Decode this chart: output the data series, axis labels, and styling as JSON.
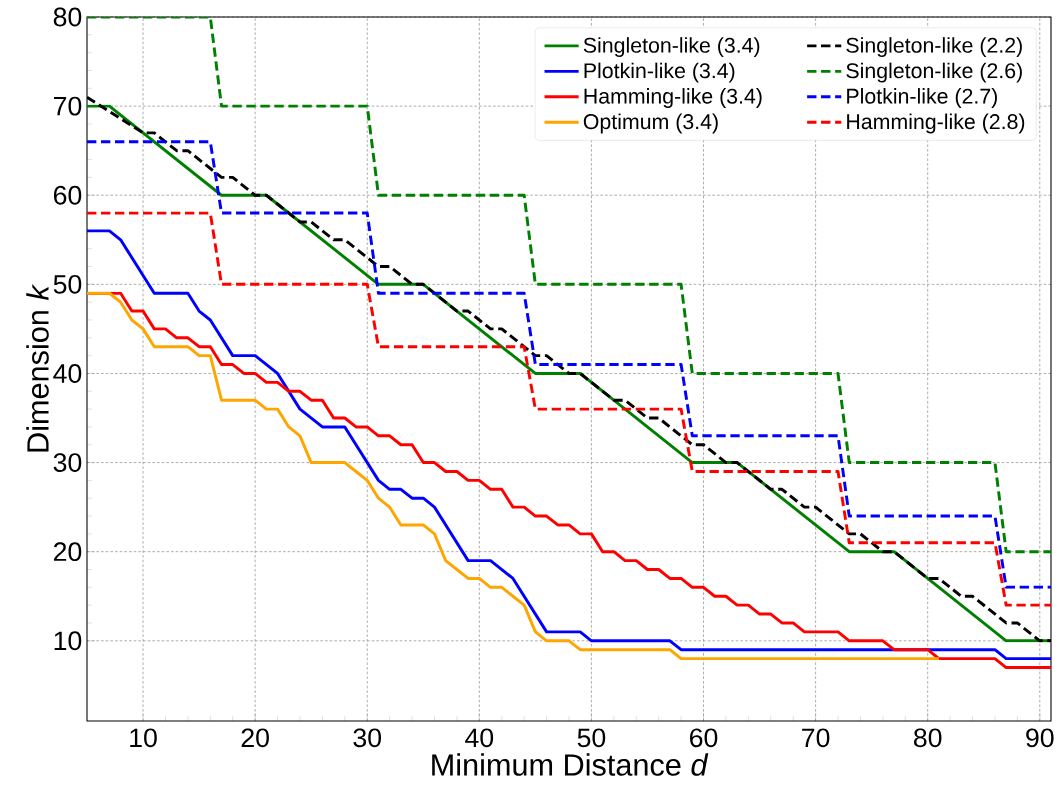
{
  "chart_data": {
    "type": "line",
    "xlabel": "Minimum Distance *d*",
    "ylabel": "Dimension *k*",
    "xlim": [
      5,
      91
    ],
    "ylim": [
      1,
      80
    ],
    "xticks": [
      10,
      20,
      30,
      40,
      50,
      60,
      70,
      80,
      90
    ],
    "yticks": [
      10,
      20,
      30,
      40,
      50,
      60,
      70,
      80
    ],
    "grid": true,
    "legend": "top right",
    "series": [
      {
        "name": "Singleton-like (3.4)",
        "color": "#008000",
        "line_style": "solid",
        "x": [
          5,
          7,
          17,
          21,
          31,
          35,
          45,
          49,
          59,
          63,
          73,
          77,
          87,
          91
        ],
        "values": [
          70,
          70,
          60,
          60,
          50,
          50,
          40,
          40,
          30,
          30,
          20,
          20,
          10,
          10
        ]
      },
      {
        "name": "Plotkin-like (3.4)",
        "color": "#0000ff",
        "line_style": "solid",
        "x": [
          5,
          7,
          8,
          11,
          14,
          15,
          16,
          18,
          20,
          22,
          24,
          26,
          28,
          31,
          32,
          33,
          34,
          35,
          36,
          39,
          41,
          43,
          46,
          49,
          50,
          57,
          58,
          86,
          87,
          91
        ],
        "values": [
          56,
          56,
          55,
          49,
          49,
          47,
          46,
          42,
          42,
          40,
          36,
          34,
          34,
          28,
          27,
          27,
          26,
          26,
          25,
          19,
          19,
          17,
          11,
          11,
          10,
          10,
          9,
          9,
          8,
          8
        ]
      },
      {
        "name": "Hamming-like (3.4)",
        "color": "#ff0000",
        "line_style": "solid",
        "x": [
          5,
          8,
          9,
          10,
          11,
          12,
          13,
          14,
          15,
          16,
          17,
          18,
          19,
          20,
          21,
          22,
          23,
          24,
          25,
          26,
          27,
          28,
          29,
          30,
          31,
          32,
          33,
          34,
          35,
          36,
          37,
          38,
          39,
          40,
          41,
          42,
          43,
          44,
          45,
          46,
          47,
          48,
          49,
          50,
          51,
          52,
          53,
          54,
          55,
          56,
          57,
          58,
          59,
          60,
          61,
          62,
          63,
          64,
          65,
          66,
          67,
          68,
          69,
          72,
          73,
          76,
          77,
          80,
          81,
          86,
          87,
          91
        ],
        "values": [
          49,
          49,
          47,
          47,
          45,
          45,
          44,
          44,
          43,
          43,
          41,
          41,
          40,
          40,
          39,
          39,
          38,
          38,
          37,
          37,
          35,
          35,
          34,
          34,
          33,
          33,
          32,
          32,
          30,
          30,
          29,
          29,
          28,
          28,
          27,
          27,
          25,
          25,
          24,
          24,
          23,
          23,
          22,
          22,
          20,
          20,
          19,
          19,
          18,
          18,
          17,
          17,
          16,
          16,
          15,
          15,
          14,
          14,
          13,
          13,
          12,
          12,
          11,
          11,
          10,
          10,
          9,
          9,
          8,
          8,
          7,
          7
        ]
      },
      {
        "name": "Optimum (3.4)",
        "color": "#ffa500",
        "line_style": "solid",
        "x": [
          5,
          7,
          8,
          9,
          10,
          11,
          14,
          15,
          16,
          17,
          20,
          21,
          22,
          23,
          24,
          25,
          28,
          29,
          30,
          31,
          32,
          33,
          35,
          36,
          37,
          38,
          39,
          40,
          41,
          42,
          43,
          44,
          45,
          46,
          48,
          49,
          57,
          58,
          81
        ],
        "values": [
          49,
          49,
          48,
          46,
          45,
          43,
          43,
          42,
          42,
          37,
          37,
          36,
          36,
          34,
          33,
          30,
          30,
          29,
          28,
          26,
          25,
          23,
          23,
          22,
          19,
          18,
          17,
          17,
          16,
          16,
          15,
          14,
          11,
          10,
          10,
          9,
          9,
          8,
          8
        ]
      },
      {
        "name": "Singleton-like (2.2)",
        "color": "#000000",
        "line_style": "dashed",
        "x": [
          5,
          10,
          11,
          13,
          14,
          17,
          18,
          20,
          21,
          24,
          25,
          27,
          28,
          31,
          32,
          34,
          35,
          38,
          39,
          41,
          42,
          45,
          46,
          48,
          49,
          52,
          53,
          55,
          56,
          59,
          60,
          62,
          63,
          66,
          67,
          69,
          70,
          73,
          74,
          76,
          77,
          80,
          81,
          83,
          84,
          87,
          88,
          90,
          91
        ],
        "values": [
          71,
          67,
          67,
          65,
          65,
          62,
          62,
          60,
          60,
          57,
          57,
          55,
          55,
          52,
          52,
          50,
          50,
          47,
          47,
          45,
          45,
          42,
          42,
          40,
          40,
          37,
          37,
          35,
          35,
          32,
          32,
          30,
          30,
          27,
          27,
          25,
          25,
          22,
          22,
          20,
          20,
          17,
          17,
          15,
          15,
          12,
          12,
          10,
          10
        ]
      },
      {
        "name": "Singleton-like (2.6)",
        "color": "#008000",
        "line_style": "dashed",
        "x": [
          5,
          16,
          17,
          30,
          31,
          44,
          45,
          58,
          59,
          72,
          73,
          86,
          87,
          91
        ],
        "values": [
          80,
          80,
          70,
          70,
          60,
          60,
          50,
          50,
          40,
          40,
          30,
          30,
          20,
          20
        ]
      },
      {
        "name": "Plotkin-like (2.7)",
        "color": "#0000ff",
        "line_style": "dashed",
        "x": [
          5,
          16,
          17,
          30,
          31,
          44,
          45,
          58,
          59,
          72,
          73,
          86,
          87,
          91
        ],
        "values": [
          66,
          66,
          58,
          58,
          49,
          49,
          41,
          41,
          33,
          33,
          24,
          24,
          16,
          16
        ]
      },
      {
        "name": "Hamming-like (2.8)",
        "color": "#ff0000",
        "line_style": "dashed",
        "x": [
          5,
          16,
          17,
          30,
          31,
          44,
          45,
          58,
          59,
          72,
          73,
          86,
          87,
          91
        ],
        "values": [
          58,
          58,
          50,
          50,
          43,
          43,
          36,
          36,
          29,
          29,
          21,
          21,
          14,
          14
        ]
      }
    ]
  }
}
